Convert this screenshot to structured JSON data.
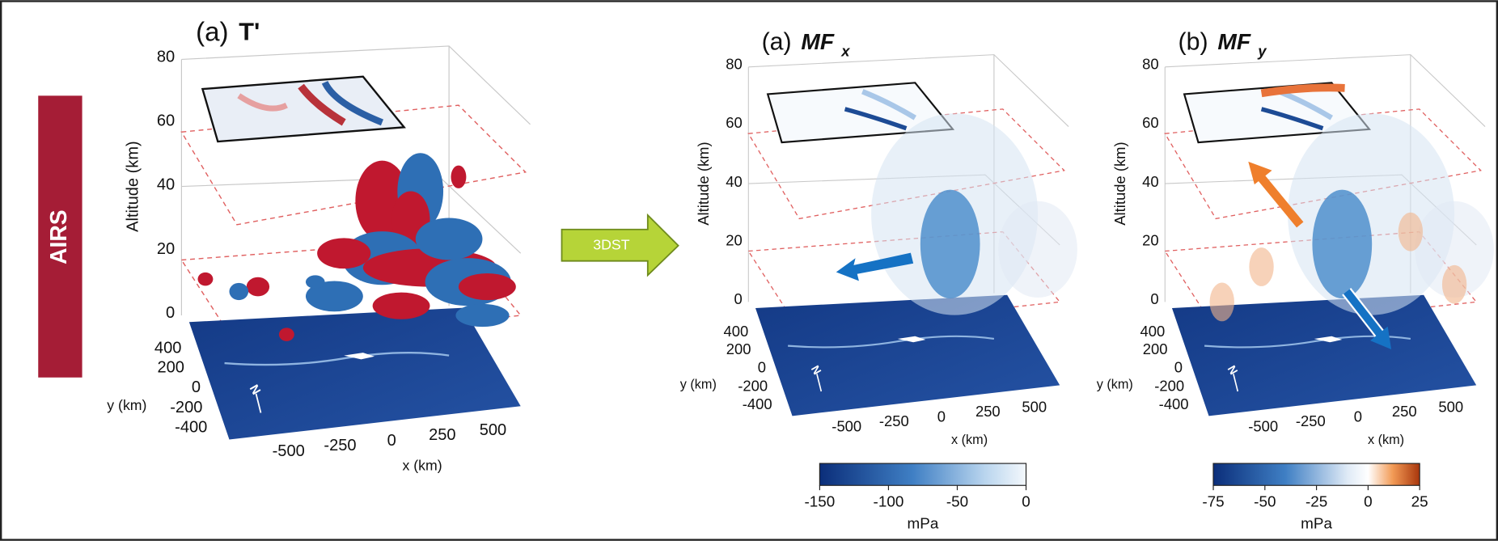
{
  "side_label": "AIRS",
  "arrow_label": "3DST",
  "panels": [
    {
      "label": "(a)",
      "title": "T'",
      "z_label": "Altitude (km)",
      "z_ticks": [
        80,
        60,
        40,
        20,
        0
      ],
      "y_label": "y (km)",
      "y_ticks": [
        400,
        200,
        0,
        -200,
        -400
      ],
      "north": "N",
      "x_label": "x (km)",
      "x_ticks": [
        -500,
        -250,
        0,
        250,
        500
      ]
    },
    {
      "label": "(a)",
      "title": "MF",
      "title_sub": "x",
      "z_label": "Altitude (km)",
      "z_ticks": [
        80,
        60,
        40,
        20,
        0
      ],
      "y_label": "y (km)",
      "y_ticks": [
        400,
        200,
        0,
        -200,
        -400
      ],
      "north": "N",
      "x_label": "x (km)",
      "x_ticks": [
        -500,
        -250,
        0,
        250,
        500
      ],
      "colorbar": {
        "ticks": [
          -150,
          -100,
          -50,
          0
        ],
        "label": "mPa"
      }
    },
    {
      "label": "(b)",
      "title": "MF",
      "title_sub": "y",
      "z_label": "Altitude (km)",
      "z_ticks": [
        80,
        60,
        40,
        20,
        0
      ],
      "y_label": "y (km)",
      "y_ticks": [
        400,
        200,
        0,
        -200,
        -400
      ],
      "north": "N",
      "x_label": "x (km)",
      "x_ticks": [
        -500,
        -250,
        0,
        250,
        500
      ],
      "colorbar": {
        "ticks": [
          -75,
          -50,
          -25,
          0,
          25
        ],
        "label": "mPa"
      }
    }
  ]
}
